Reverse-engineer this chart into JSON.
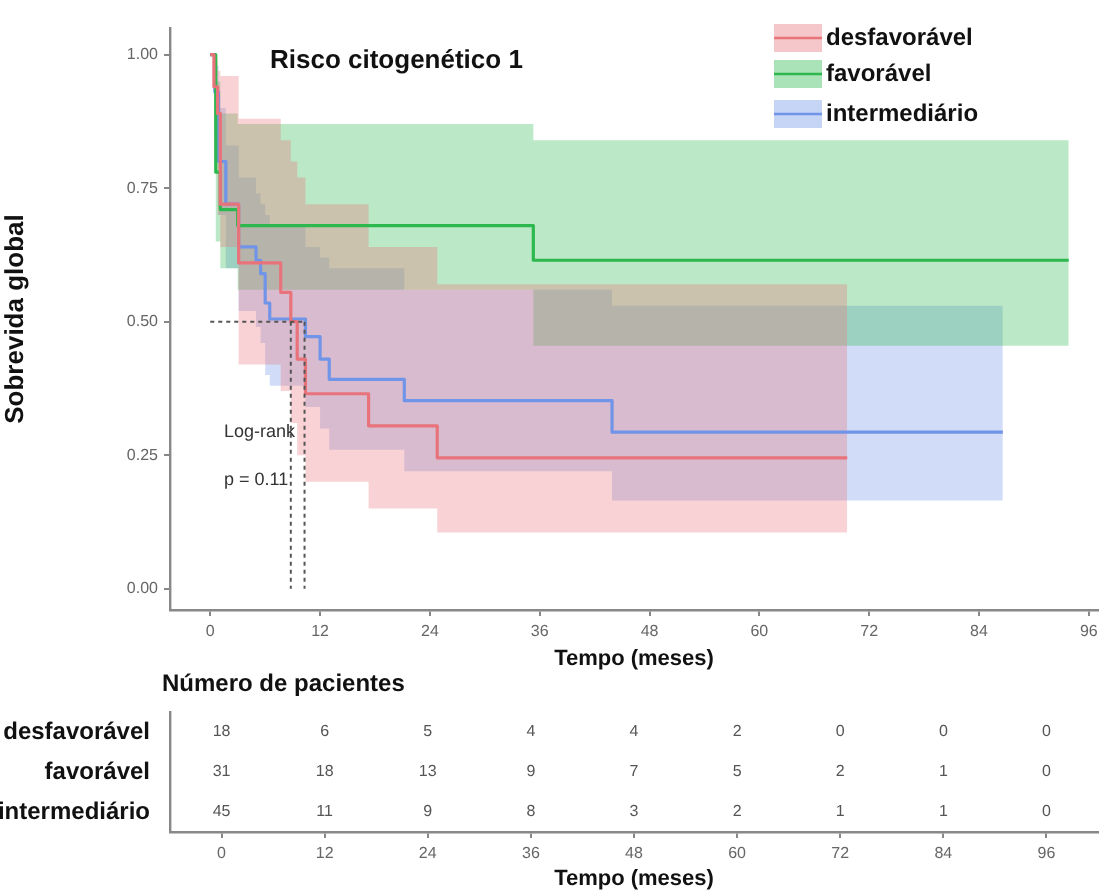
{
  "chart_data": [
    {
      "type": "step",
      "title": "Risco citogenético 1",
      "xlabel": "Tempo (meses)",
      "ylabel": "Sobrevida global",
      "xlim": [
        -4.4,
        97
      ],
      "xticks": [
        0,
        12,
        24,
        36,
        48,
        60,
        72,
        84,
        96
      ],
      "ylim": [
        -0.04,
        1.05
      ],
      "yticks": [
        {
          "value": 0,
          "label": "0.00"
        },
        {
          "value": 0.25,
          "label": "0.25"
        },
        {
          "value": 0.5,
          "label": "0.50"
        },
        {
          "value": 0.75,
          "label": "0.75"
        },
        {
          "value": 1,
          "label": "1.00"
        }
      ],
      "grid": false,
      "legend": "top right",
      "marker": "none",
      "line_style": "solid",
      "series": [
        {
          "name": "desfavorável",
          "color": "#e8737a",
          "x": [
            0,
            0.4,
            0.8,
            1.1,
            3.1,
            7.7,
            8.8,
            9.5,
            10.4,
            17.3,
            24.8,
            69.6
          ],
          "values": [
            1,
            0.94,
            0.89,
            0.72,
            0.61,
            0.555,
            0.5,
            0.43,
            0.365,
            0.305,
            0.245,
            0.245
          ],
          "lower": [
            1,
            0.8,
            0.7,
            0.64,
            0.42,
            0.37,
            0.31,
            0.25,
            0.2,
            0.15,
            0.105,
            0.105
          ],
          "upper": [
            1,
            0.99,
            0.97,
            0.96,
            0.88,
            0.84,
            0.8,
            0.77,
            0.72,
            0.64,
            0.57,
            0.57
          ]
        },
        {
          "name": "favorável",
          "color": "#2db84d",
          "x": [
            0,
            0.6,
            1.1,
            3,
            35.3,
            93.8
          ],
          "values": [
            1,
            0.78,
            0.71,
            0.68,
            0.615,
            0.615
          ],
          "lower": [
            1,
            0.65,
            0.6,
            0.56,
            0.455,
            0.455
          ],
          "upper": [
            1,
            0.95,
            0.89,
            0.87,
            0.84,
            0.84
          ]
        },
        {
          "name": "intermediário",
          "color": "#7094e8",
          "x": [
            0,
            0.5,
            0.9,
            1.7,
            3.1,
            5,
            5.5,
            6,
            6.5,
            10.4,
            12,
            13,
            21.2,
            43.9,
            86.6
          ],
          "values": [
            1,
            0.93,
            0.8,
            0.72,
            0.64,
            0.615,
            0.59,
            0.535,
            0.505,
            0.472,
            0.43,
            0.392,
            0.352,
            0.293,
            0.293
          ],
          "lower": [
            1,
            0.85,
            0.7,
            0.6,
            0.52,
            0.49,
            0.46,
            0.4,
            0.38,
            0.34,
            0.3,
            0.26,
            0.22,
            0.165,
            0.165
          ],
          "upper": [
            1,
            0.98,
            0.9,
            0.83,
            0.77,
            0.74,
            0.72,
            0.7,
            0.68,
            0.64,
            0.62,
            0.6,
            0.56,
            0.53,
            0.53
          ]
        }
      ],
      "ref_lines": [
        {
          "axis": "y",
          "value": 0.5,
          "line_style": "dotted",
          "color": "#555555"
        },
        {
          "axis": "x",
          "value": 8.8,
          "line_style": "dotted",
          "color": "#555555"
        },
        {
          "axis": "x",
          "value": 10.3,
          "line_style": "dotted",
          "color": "#555555"
        }
      ],
      "annotations": [
        "Log-rank",
        "p = 0.11"
      ]
    },
    {
      "type": "heatmap",
      "title": "Número de pacientes",
      "xlabel": "Tempo (meses)",
      "categories": [
        "0",
        "12",
        "24",
        "36",
        "48",
        "60",
        "72",
        "84",
        "96"
      ],
      "y_categories": [
        "desfavorável",
        "favorável",
        "intermediário"
      ],
      "data_labels": true,
      "cells": [
        [
          18,
          6,
          5,
          4,
          4,
          2,
          0,
          0,
          0
        ],
        [
          31,
          18,
          13,
          9,
          7,
          5,
          2,
          1,
          0
        ],
        [
          45,
          11,
          9,
          8,
          3,
          2,
          1,
          1,
          0
        ]
      ]
    }
  ]
}
